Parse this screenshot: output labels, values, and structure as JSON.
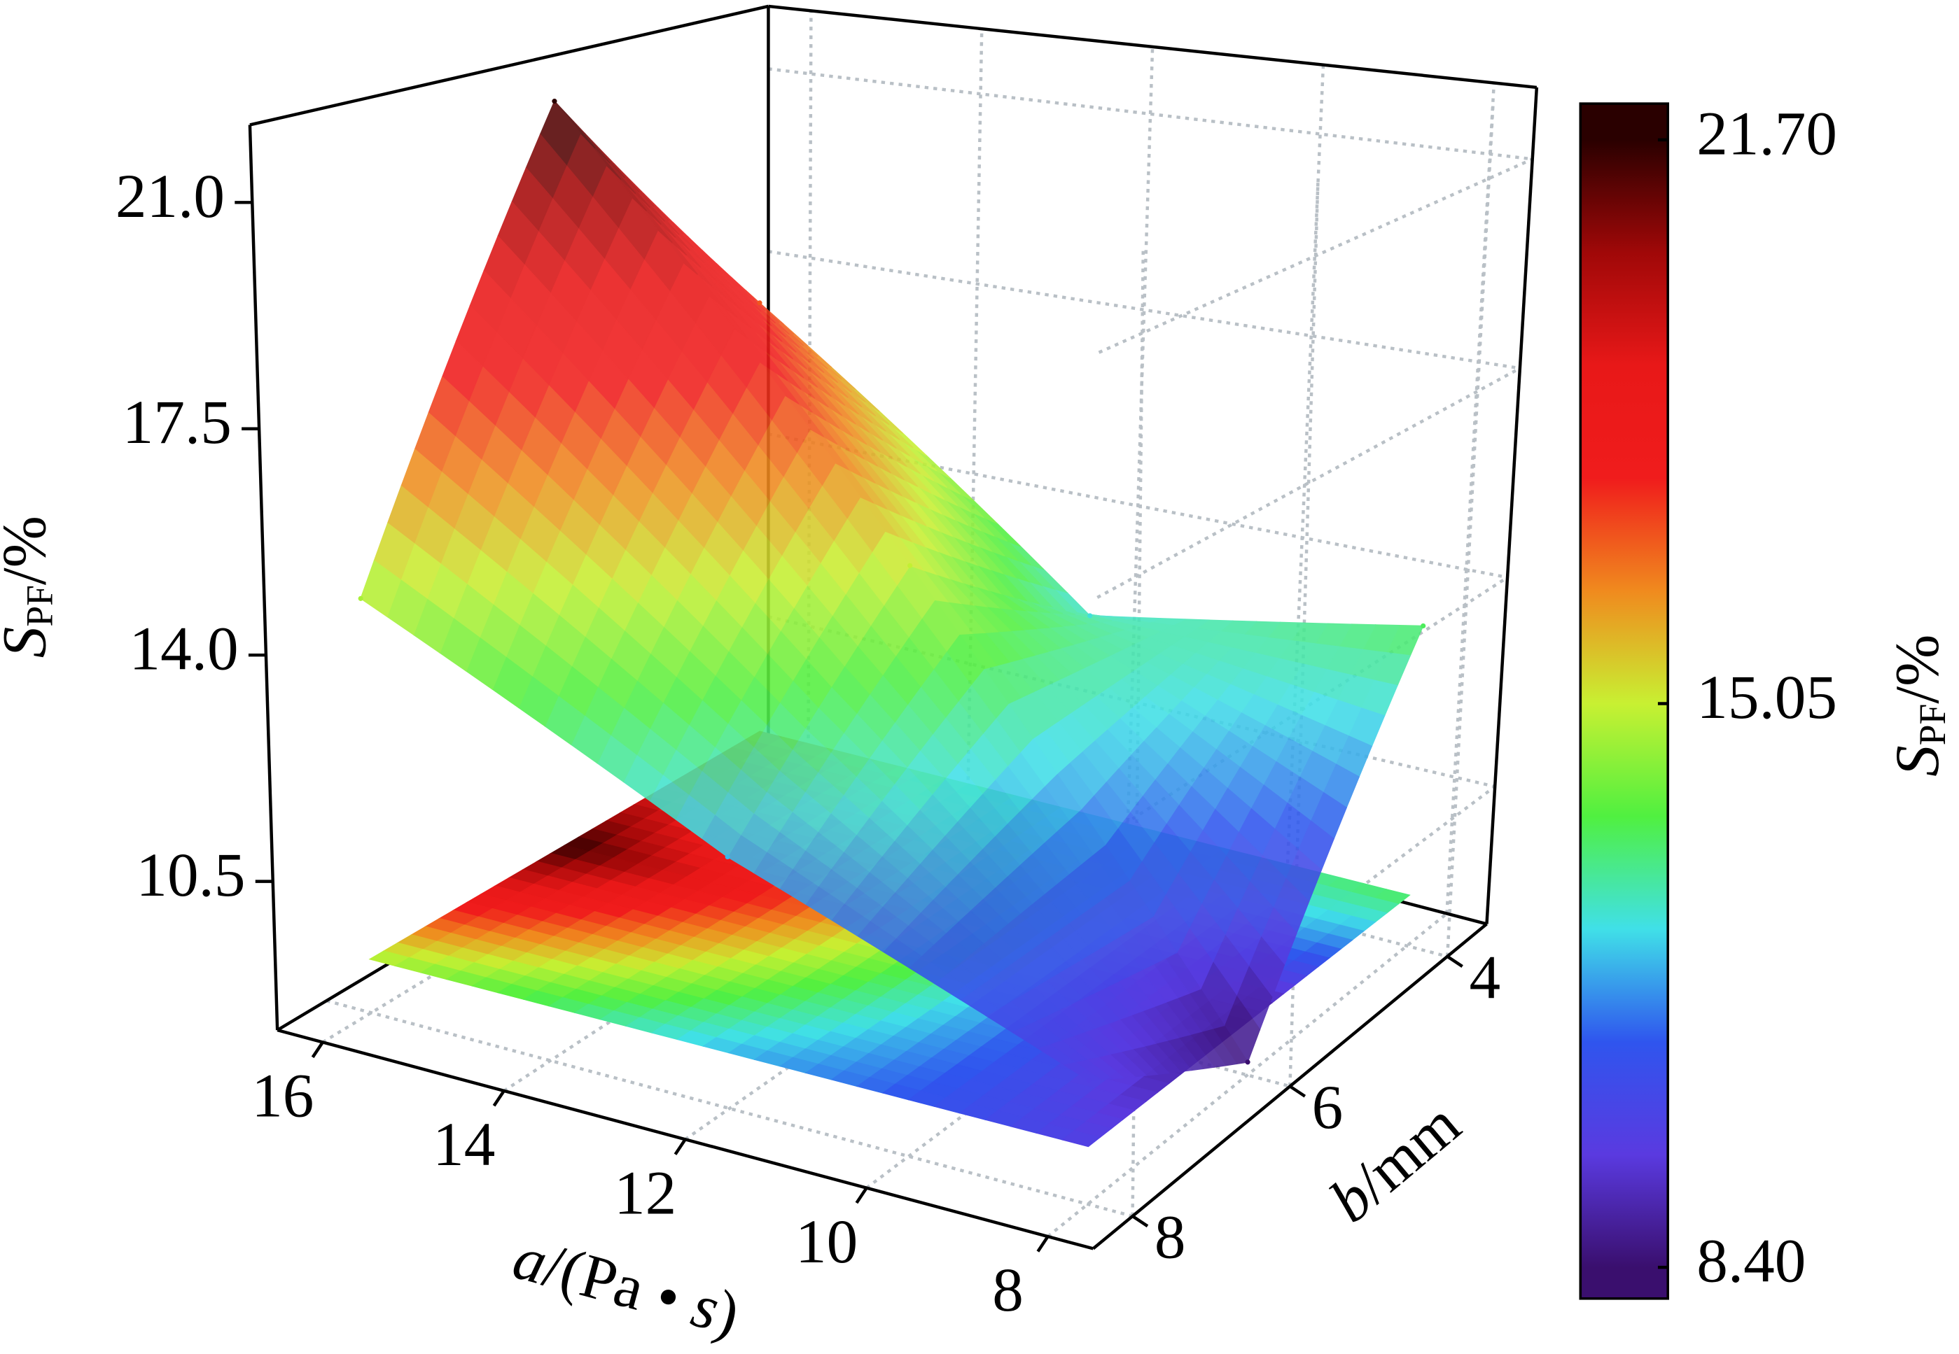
{
  "chart_data": {
    "type": "surface3d",
    "x_label": [
      "a",
      "/(Pa • ",
      "s",
      ")"
    ],
    "y_label": [
      "b",
      "/mm"
    ],
    "z_label": {
      "symbol": "S",
      "subscript": "PF",
      "unit": "/%"
    },
    "x": [
      16,
      12,
      8
    ],
    "y": [
      4,
      6,
      8
    ],
    "z": [
      [
        17,
        12.5,
        13.5
      ],
      [
        21.7,
        15,
        8.4
      ],
      [
        14.7,
        12,
        10
      ]
    ],
    "xlim": [
      16.5,
      7.5
    ],
    "ylim": [
      8.5,
      3.5
    ],
    "zlim": [
      8.2,
      22.2
    ],
    "xticks": [
      16,
      14,
      12,
      10,
      8
    ],
    "yticks": [
      4,
      6,
      8
    ],
    "zticks": [
      10.5,
      {
        "value": 14,
        "label": "14.0"
      },
      17.5,
      {
        "value": 21,
        "label": "21.0"
      }
    ],
    "grid": true,
    "colormap": [
      "#3a0f6e",
      "#5a3ae0",
      "#2f55ee",
      "#40e0e8",
      "#50f040",
      "#c8f032",
      "#f08a1e",
      "#f01c1c",
      "#e81818",
      "#a00808",
      "#2a0000"
    ],
    "colorbar": {
      "label": {
        "symbol": "S",
        "subscript": "PF",
        "unit": "/%"
      },
      "clim": [
        8.4,
        21.7
      ],
      "ticks": [
        {
          "value": 8.4,
          "label": "8.40"
        },
        {
          "value": 15.05,
          "label": "15.05"
        },
        {
          "value": 21.7,
          "label": "21.70"
        }
      ]
    }
  }
}
